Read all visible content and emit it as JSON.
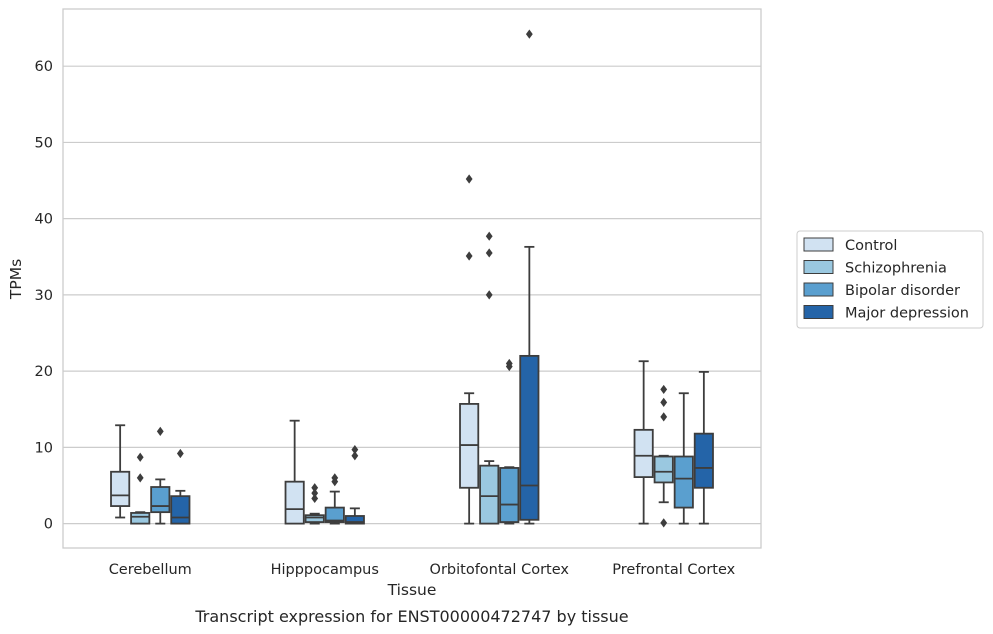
{
  "chart_data": {
    "type": "box",
    "categories": [
      "Cerebellum",
      "Hipppocampus",
      "Orbitofontal Cortex",
      "Prefrontal Cortex"
    ],
    "xlabel": "Tissue",
    "ylabel": "TPMs",
    "caption": "Transcript expression for ENST00000472747 by tissue",
    "ylim": [
      -3.2,
      67.5
    ],
    "yticks": [
      0,
      10,
      20,
      30,
      40,
      50,
      60
    ],
    "grid": "horizontal",
    "legend_position": "right",
    "series": [
      {
        "name": "Control",
        "color": "#d1e2f2",
        "boxes": [
          {
            "whisker_low": 0.8,
            "q1": 2.3,
            "median": 3.7,
            "q3": 6.8,
            "whisker_high": 12.9,
            "outliers": []
          },
          {
            "whisker_low": 0,
            "q1": 0,
            "median": 1.9,
            "q3": 5.5,
            "whisker_high": 13.5,
            "outliers": []
          },
          {
            "whisker_low": 0,
            "q1": 4.7,
            "median": 10.3,
            "q3": 15.7,
            "whisker_high": 17.1,
            "outliers": [
              35.1,
              45.2
            ]
          },
          {
            "whisker_low": 0,
            "q1": 6.1,
            "median": 8.9,
            "q3": 12.3,
            "whisker_high": 21.3,
            "outliers": []
          }
        ]
      },
      {
        "name": "Schizophrenia",
        "color": "#9ac8e0",
        "boxes": [
          {
            "whisker_low": 0,
            "q1": 0,
            "median": 0.9,
            "q3": 1.4,
            "whisker_high": 1.5,
            "outliers": [
              6.0,
              8.7
            ]
          },
          {
            "whisker_low": 0,
            "q1": 0.2,
            "median": 0.8,
            "q3": 1.1,
            "whisker_high": 1.3,
            "outliers": [
              3.3,
              4.0,
              4.7
            ]
          },
          {
            "whisker_low": 0,
            "q1": 0,
            "median": 3.6,
            "q3": 7.6,
            "whisker_high": 8.2,
            "outliers": [
              30.0,
              35.5,
              37.7
            ]
          },
          {
            "whisker_low": 2.8,
            "q1": 5.4,
            "median": 6.8,
            "q3": 8.8,
            "whisker_high": 8.9,
            "outliers": [
              0.1,
              14.0,
              15.9,
              17.6
            ]
          }
        ]
      },
      {
        "name": "Bipolar disorder",
        "color": "#5a9fcf",
        "boxes": [
          {
            "whisker_low": 0,
            "q1": 1.5,
            "median": 2.3,
            "q3": 4.8,
            "whisker_high": 5.8,
            "outliers": [
              12.1
            ]
          },
          {
            "whisker_low": 0,
            "q1": 0.2,
            "median": 0.4,
            "q3": 2.1,
            "whisker_high": 4.2,
            "outliers": [
              5.5,
              6.0
            ]
          },
          {
            "whisker_low": 0,
            "q1": 0.2,
            "median": 2.5,
            "q3": 7.3,
            "whisker_high": 7.4,
            "outliers": [
              20.6,
              21.0
            ]
          },
          {
            "whisker_low": 0,
            "q1": 2.1,
            "median": 5.9,
            "q3": 8.8,
            "whisker_high": 17.1,
            "outliers": []
          }
        ]
      },
      {
        "name": "Major depression",
        "color": "#2464a8",
        "boxes": [
          {
            "whisker_low": 0,
            "q1": 0,
            "median": 0.8,
            "q3": 3.6,
            "whisker_high": 4.3,
            "outliers": [
              9.2
            ]
          },
          {
            "whisker_low": 0,
            "q1": 0,
            "median": 0.2,
            "q3": 1.0,
            "whisker_high": 2.0,
            "outliers": [
              8.9,
              9.7
            ]
          },
          {
            "whisker_low": 0,
            "q1": 0.5,
            "median": 5.0,
            "q3": 22.0,
            "whisker_high": 36.3,
            "outliers": [
              64.2
            ]
          },
          {
            "whisker_low": 0,
            "q1": 4.7,
            "median": 7.3,
            "q3": 11.8,
            "whisker_high": 19.9,
            "outliers": []
          }
        ]
      }
    ]
  }
}
